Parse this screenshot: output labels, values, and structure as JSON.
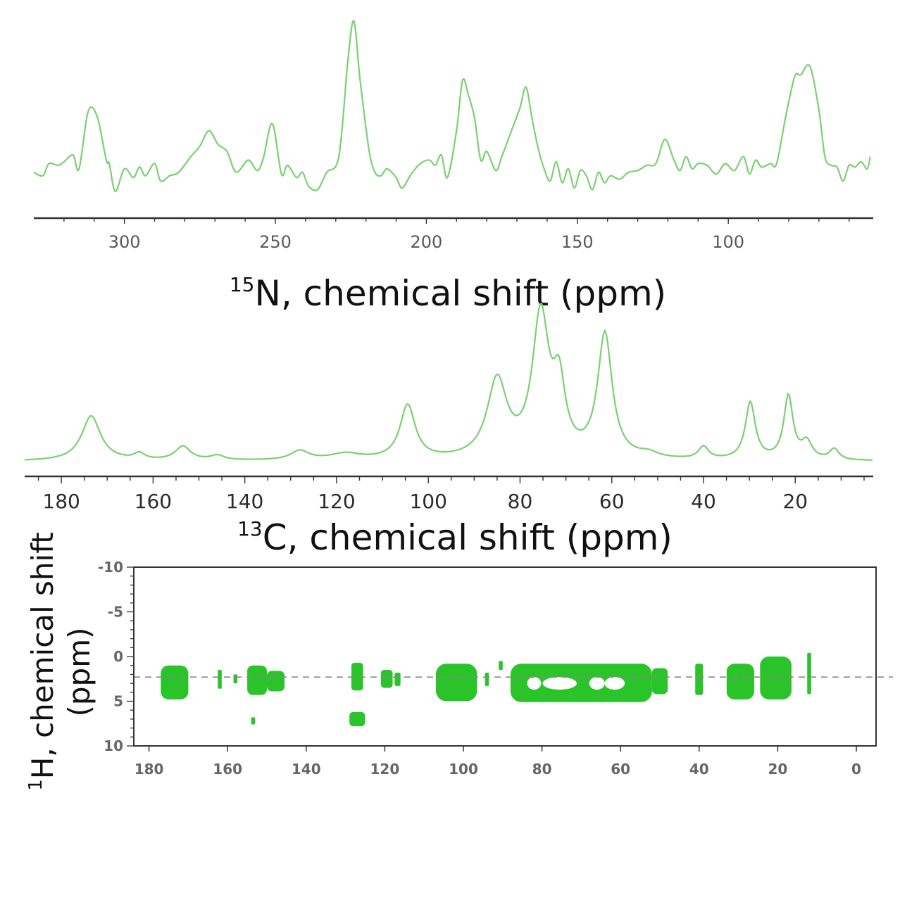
{
  "colors": {
    "spectrum_line": "#7ccf73",
    "contour_fill": "#2ac42a",
    "axis": "#333333",
    "reference_line": "#888888"
  },
  "chart_data": [
    {
      "id": "n15",
      "type": "line",
      "title": "",
      "xlabel": {
        "superscript": "15",
        "text": "N, chemical shift (ppm)"
      },
      "ylabel": "",
      "xlim": [
        330,
        52
      ],
      "xticks": [
        {
          "value": 300,
          "label": "300"
        },
        {
          "value": 250,
          "label": "250"
        },
        {
          "value": 200,
          "label": "200"
        },
        {
          "value": 150,
          "label": "150"
        },
        {
          "value": 100,
          "label": "100"
        }
      ],
      "ylim": [
        0,
        1
      ],
      "baseline": 0.14,
      "points": [
        [
          330,
          0.11
        ],
        [
          327,
          0.09
        ],
        [
          325,
          0.16
        ],
        [
          322,
          0.15
        ],
        [
          320,
          0.17
        ],
        [
          317,
          0.21
        ],
        [
          315,
          0.13
        ],
        [
          312,
          0.46
        ],
        [
          309,
          0.43
        ],
        [
          306,
          0.18
        ],
        [
          305,
          0.16
        ],
        [
          303,
          0.0
        ],
        [
          300,
          0.13
        ],
        [
          297,
          0.08
        ],
        [
          295,
          0.14
        ],
        [
          293,
          0.09
        ],
        [
          290,
          0.16
        ],
        [
          288,
          0.06
        ],
        [
          285,
          0.09
        ],
        [
          282,
          0.11
        ],
        [
          278,
          0.2
        ],
        [
          275,
          0.26
        ],
        [
          272,
          0.35
        ],
        [
          269,
          0.27
        ],
        [
          266,
          0.23
        ],
        [
          263,
          0.11
        ],
        [
          259,
          0.18
        ],
        [
          256,
          0.12
        ],
        [
          254,
          0.19
        ],
        [
          251,
          0.39
        ],
        [
          248,
          0.1
        ],
        [
          246,
          0.15
        ],
        [
          243,
          0.08
        ],
        [
          241,
          0.11
        ],
        [
          239,
          0.03
        ],
        [
          236,
          0.01
        ],
        [
          233,
          0.11
        ],
        [
          229,
          0.2
        ],
        [
          226,
          0.75
        ],
        [
          224,
          0.98
        ],
        [
          222,
          0.65
        ],
        [
          219,
          0.24
        ],
        [
          217,
          0.11
        ],
        [
          215,
          0.09
        ],
        [
          213,
          0.13
        ],
        [
          210,
          0.08
        ],
        [
          208,
          0.02
        ],
        [
          205,
          0.1
        ],
        [
          202,
          0.16
        ],
        [
          199,
          0.18
        ],
        [
          197,
          0.15
        ],
        [
          195,
          0.21
        ],
        [
          193,
          0.08
        ],
        [
          190,
          0.35
        ],
        [
          188,
          0.64
        ],
        [
          186,
          0.55
        ],
        [
          184,
          0.42
        ],
        [
          182,
          0.18
        ],
        [
          180,
          0.23
        ],
        [
          177,
          0.12
        ],
        [
          175,
          0.2
        ],
        [
          172,
          0.34
        ],
        [
          169,
          0.48
        ],
        [
          167,
          0.6
        ],
        [
          165,
          0.42
        ],
        [
          163,
          0.25
        ],
        [
          161,
          0.13
        ],
        [
          159,
          0.06
        ],
        [
          157,
          0.17
        ],
        [
          155,
          0.05
        ],
        [
          153,
          0.13
        ],
        [
          151,
          0.02
        ],
        [
          149,
          0.12
        ],
        [
          147,
          0.09
        ],
        [
          145,
          0.01
        ],
        [
          143,
          0.11
        ],
        [
          141,
          0.05
        ],
        [
          139,
          0.09
        ],
        [
          136,
          0.07
        ],
        [
          133,
          0.11
        ],
        [
          130,
          0.12
        ],
        [
          127,
          0.15
        ],
        [
          124,
          0.16
        ],
        [
          121,
          0.3
        ],
        [
          118,
          0.18
        ],
        [
          116,
          0.12
        ],
        [
          114,
          0.2
        ],
        [
          112,
          0.13
        ],
        [
          110,
          0.16
        ],
        [
          107,
          0.15
        ],
        [
          104,
          0.1
        ],
        [
          101,
          0.16
        ],
        [
          98,
          0.12
        ],
        [
          95,
          0.2
        ],
        [
          93,
          0.1
        ],
        [
          91,
          0.18
        ],
        [
          89,
          0.14
        ],
        [
          86,
          0.16
        ],
        [
          84,
          0.16
        ],
        [
          81,
          0.43
        ],
        [
          78,
          0.66
        ],
        [
          76,
          0.67
        ],
        [
          73,
          0.72
        ],
        [
          70,
          0.47
        ],
        [
          68,
          0.2
        ],
        [
          66,
          0.15
        ],
        [
          64,
          0.14
        ],
        [
          62,
          0.06
        ],
        [
          60,
          0.15
        ],
        [
          58,
          0.14
        ],
        [
          56,
          0.17
        ],
        [
          54,
          0.13
        ],
        [
          53,
          0.2
        ]
      ]
    },
    {
      "id": "c13",
      "type": "line",
      "title": "",
      "xlabel": {
        "superscript": "13",
        "text": "C, chemical shift (ppm)"
      },
      "ylabel": "",
      "xlim": [
        188,
        3
      ],
      "xticks": [
        {
          "value": 180,
          "label": "180"
        },
        {
          "value": 160,
          "label": "160"
        },
        {
          "value": 140,
          "label": "140"
        },
        {
          "value": 120,
          "label": "120"
        },
        {
          "value": 100,
          "label": "100"
        },
        {
          "value": 80,
          "label": "80"
        },
        {
          "value": 60,
          "label": "60"
        },
        {
          "value": 40,
          "label": "40"
        },
        {
          "value": 20,
          "label": "20"
        }
      ],
      "ylim": [
        0,
        1
      ],
      "baseline": 0.02,
      "peaks": [
        {
          "position": 173.5,
          "height": 0.29,
          "width": 2.5
        },
        {
          "position": 163,
          "height": 0.04,
          "width": 1.4
        },
        {
          "position": 153.5,
          "height": 0.09,
          "width": 2.0
        },
        {
          "position": 146,
          "height": 0.03,
          "width": 1.8
        },
        {
          "position": 128,
          "height": 0.06,
          "width": 2.4
        },
        {
          "position": 118,
          "height": 0.04,
          "width": 4.0
        },
        {
          "position": 104.5,
          "height": 0.35,
          "width": 2.0
        },
        {
          "position": 85,
          "height": 0.5,
          "width": 2.6
        },
        {
          "position": 75.5,
          "height": 0.91,
          "width": 2.2
        },
        {
          "position": 71.5,
          "height": 0.42,
          "width": 1.6
        },
        {
          "position": 61.5,
          "height": 0.8,
          "width": 1.9
        },
        {
          "position": 52,
          "height": 0.03,
          "width": 2.5
        },
        {
          "position": 40,
          "height": 0.08,
          "width": 1.3
        },
        {
          "position": 29.8,
          "height": 0.37,
          "width": 1.3
        },
        {
          "position": 21.5,
          "height": 0.41,
          "width": 1.2
        },
        {
          "position": 17.5,
          "height": 0.11,
          "width": 1.4
        },
        {
          "position": 11.5,
          "height": 0.07,
          "width": 1.2
        }
      ]
    },
    {
      "id": "h1c13",
      "type": "heatmap",
      "title": "",
      "xlabel": "",
      "ylabel": {
        "superscript": "1",
        "text": "H, chemical shift",
        "unit": "(ppm)"
      },
      "xlim": [
        188,
        -5
      ],
      "ylim": [
        -10,
        10
      ],
      "xticks": [
        {
          "value": 180,
          "label": "180"
        },
        {
          "value": 160,
          "label": "160"
        },
        {
          "value": 140,
          "label": "140"
        },
        {
          "value": 120,
          "label": "120"
        },
        {
          "value": 100,
          "label": "100"
        },
        {
          "value": 80,
          "label": "80"
        },
        {
          "value": 60,
          "label": "60"
        },
        {
          "value": 40,
          "label": "40"
        },
        {
          "value": 20,
          "label": "20"
        },
        {
          "value": 0,
          "label": "0"
        }
      ],
      "yticks": [
        {
          "value": -10,
          "label": "-10"
        },
        {
          "value": -5,
          "label": "-5"
        },
        {
          "value": 0,
          "label": "0"
        },
        {
          "value": 5,
          "label": "5"
        },
        {
          "value": 10,
          "label": "10"
        }
      ],
      "reference_line_ppm": 2.3,
      "cross_peaks": [
        {
          "c": [
            177,
            170
          ],
          "h": [
            1.0,
            4.8
          ]
        },
        {
          "c": [
            162.5,
            161.5
          ],
          "h": [
            1.5,
            3.6
          ]
        },
        {
          "c": [
            158.5,
            157.5
          ],
          "h": [
            2.0,
            3.0
          ]
        },
        {
          "c": [
            155,
            150
          ],
          "h": [
            1.0,
            4.3
          ]
        },
        {
          "c": [
            150,
            145.5
          ],
          "h": [
            1.6,
            3.9
          ]
        },
        {
          "c": [
            154,
            153
          ],
          "h": [
            6.8,
            7.6
          ]
        },
        {
          "c": [
            128.5,
            125.5
          ],
          "h": [
            0.7,
            3.8
          ]
        },
        {
          "c": [
            129,
            125
          ],
          "h": [
            6.2,
            7.8
          ]
        },
        {
          "c": [
            121,
            118
          ],
          "h": [
            1.5,
            3.5
          ]
        },
        {
          "c": [
            117.5,
            116
          ],
          "h": [
            1.8,
            3.3
          ]
        },
        {
          "c": [
            107,
            96.5
          ],
          "h": [
            0.8,
            5.0
          ]
        },
        {
          "c": [
            94.5,
            93.5
          ],
          "h": [
            1.8,
            3.3
          ]
        },
        {
          "c": [
            91,
            90
          ],
          "h": [
            0.5,
            1.5
          ]
        },
        {
          "c": [
            88,
            52
          ],
          "h": [
            0.8,
            5.1
          ]
        },
        {
          "c": [
            52,
            48
          ],
          "h": [
            1.3,
            4.2
          ]
        },
        {
          "c": [
            41,
            39
          ],
          "h": [
            0.8,
            4.3
          ]
        },
        {
          "c": [
            33,
            26
          ],
          "h": [
            0.8,
            4.8
          ]
        },
        {
          "c": [
            24.5,
            16.5
          ],
          "h": [
            0.0,
            4.8
          ]
        },
        {
          "c": [
            12.5,
            11.5
          ],
          "h": [
            -0.4,
            4.2
          ]
        }
      ]
    }
  ]
}
